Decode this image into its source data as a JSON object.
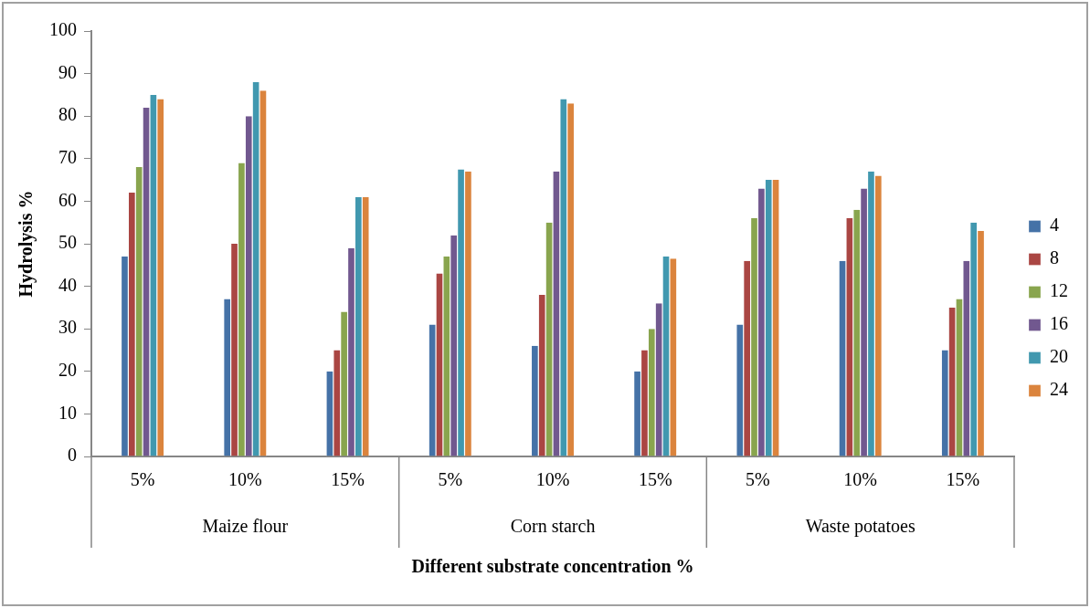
{
  "chart_data": {
    "type": "bar",
    "xlabel": "Different substrate concentration %",
    "ylabel": "Hydrolysis %",
    "categories": [
      "5%",
      "10%",
      "15%",
      "5%",
      "10%",
      "15%",
      "5%",
      "10%",
      "15%"
    ],
    "annotations": [
      "Maize flour",
      "Corn starch",
      "Waste potatoes"
    ],
    "series": [
      {
        "name": "4",
        "color": "#4572a7",
        "values": [
          47,
          37,
          20,
          31,
          26,
          20,
          31,
          46,
          25
        ]
      },
      {
        "name": "8",
        "color": "#aa4643",
        "values": [
          62,
          50,
          25,
          43,
          38,
          25,
          46,
          56,
          35
        ]
      },
      {
        "name": "12",
        "color": "#89a54e",
        "values": [
          68,
          69,
          34,
          47,
          55,
          30,
          56,
          58,
          37
        ]
      },
      {
        "name": "16",
        "color": "#71588f",
        "values": [
          82,
          80,
          49,
          52,
          67,
          36,
          63,
          63,
          46
        ]
      },
      {
        "name": "20",
        "color": "#4198af",
        "values": [
          85,
          88,
          61,
          67.5,
          84,
          47,
          65,
          67,
          55
        ]
      },
      {
        "name": "24",
        "color": "#db843d",
        "values": [
          84,
          86,
          61,
          67,
          83,
          46.5,
          65,
          66,
          53
        ]
      }
    ],
    "ylim": [
      0,
      100
    ],
    "yticks": [
      0,
      10,
      20,
      30,
      40,
      50,
      60,
      70,
      80,
      90,
      100
    ],
    "grid": false,
    "legend": "right"
  }
}
